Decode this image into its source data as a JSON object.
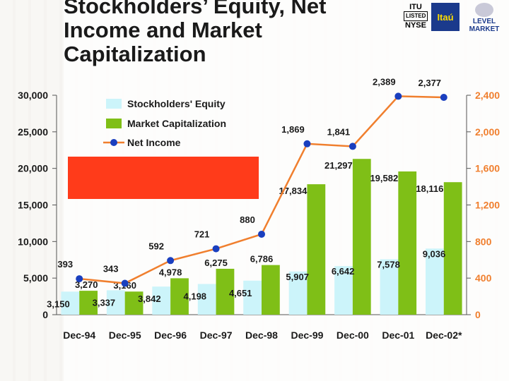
{
  "title": "Stockholders’ Equity, Net Income and Market Capitalization",
  "logos": {
    "itu_top": "ITU",
    "itu_box": "LISTED",
    "itu_bottom": "NYSE",
    "itau": "Itaú",
    "level_top": "LEVEL",
    "level_bottom": "MARKET"
  },
  "colors": {
    "equity": "#ccf4fa",
    "market_cap": "#7fbf17",
    "net_income_line": "#f07f2e",
    "net_income_marker": "#1a3fbf",
    "right_axis": "#f07f2e",
    "red_box": "#ff3b1a"
  },
  "chart_data": {
    "type": "bar",
    "title": "",
    "categories": [
      "Dec-94",
      "Dec-95",
      "Dec-96",
      "Dec-97",
      "Dec-98",
      "Dec-99",
      "Dec-00",
      "Dec-01",
      "Dec-02*"
    ],
    "left_axis": {
      "ticks": [
        "0",
        "5,000",
        "10,000",
        "15,000",
        "20,000",
        "25,000",
        "30,000"
      ],
      "ylim": [
        0,
        30000
      ]
    },
    "right_axis": {
      "ticks": [
        "0",
        "400",
        "800",
        "1,200",
        "1,600",
        "2,000",
        "2,400"
      ],
      "ylim": [
        0,
        2400
      ]
    },
    "series": [
      {
        "name": "Stockholders' Equity",
        "type": "bar",
        "axis": "left",
        "values": [
          3150,
          3337,
          3842,
          4198,
          4651,
          5907,
          6642,
          7578,
          9036
        ],
        "labels": [
          "3,150",
          "3,337",
          "3,842",
          "4,198",
          "4,651",
          "5,907",
          "6,642",
          "7,578",
          "9,036"
        ]
      },
      {
        "name": "Market Capitalization",
        "type": "bar",
        "axis": "left",
        "values": [
          3270,
          3160,
          4978,
          6275,
          6786,
          17834,
          21297,
          19582,
          18116
        ],
        "labels": [
          "3,270",
          "3,160",
          "4,978",
          "6,275",
          "6,786",
          "17,834",
          "21,297",
          "19,582",
          "18,116"
        ]
      },
      {
        "name": "Net Income",
        "type": "line",
        "axis": "right",
        "values": [
          393,
          343,
          592,
          721,
          880,
          1869,
          1841,
          2389,
          2377
        ],
        "labels": [
          "393",
          "343",
          "592",
          "721",
          "880",
          "1,869",
          "1,841",
          "2,389",
          "2,377"
        ]
      }
    ],
    "legend": "top-left",
    "grid": false
  }
}
